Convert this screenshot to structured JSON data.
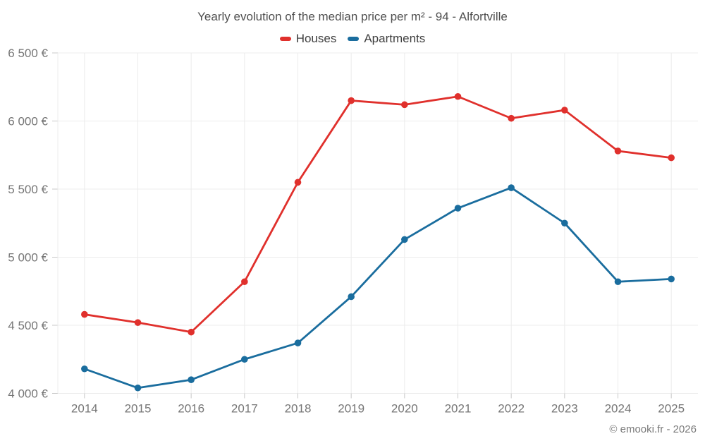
{
  "chart": {
    "title": "Yearly evolution of the median price per m² - 94 - Alfortville"
  },
  "footer": {
    "copyright": "© emooki.fr - 2026"
  },
  "chart_data": {
    "type": "line",
    "title": "Yearly evolution of the median price per m² - 94 - Alfortville",
    "categories": [
      "2014",
      "2015",
      "2016",
      "2017",
      "2018",
      "2019",
      "2020",
      "2021",
      "2022",
      "2023",
      "2024",
      "2025"
    ],
    "series": [
      {
        "name": "Houses",
        "color": "#e0302c",
        "values": [
          4580,
          4520,
          4450,
          4820,
          5550,
          6150,
          6120,
          6180,
          6020,
          6080,
          5780,
          5730
        ]
      },
      {
        "name": "Apartments",
        "color": "#1a6d9e",
        "values": [
          4180,
          4040,
          4100,
          4250,
          4370,
          4710,
          5130,
          5360,
          5510,
          5250,
          4820,
          4840
        ]
      }
    ],
    "ylim": [
      4000,
      6500
    ],
    "ytick_step": 500,
    "yticks": [
      {
        "value": 4000,
        "label": "4 000 €"
      },
      {
        "value": 4500,
        "label": "4 500 €"
      },
      {
        "value": 5000,
        "label": "5 000 €"
      },
      {
        "value": 5500,
        "label": "5 500 €"
      },
      {
        "value": 6000,
        "label": "6 000 €"
      },
      {
        "value": 6500,
        "label": "6 500 €"
      }
    ],
    "xlabel": "",
    "ylabel": "",
    "grid": true,
    "legend_position": "top"
  },
  "style": {
    "background": "#ffffff",
    "grid_color": "#ececec",
    "tick_color": "#c8c8c8",
    "axis_label_color": "#767676",
    "title_color": "#4f4f4f",
    "footer_color": "#7a7a7a"
  }
}
